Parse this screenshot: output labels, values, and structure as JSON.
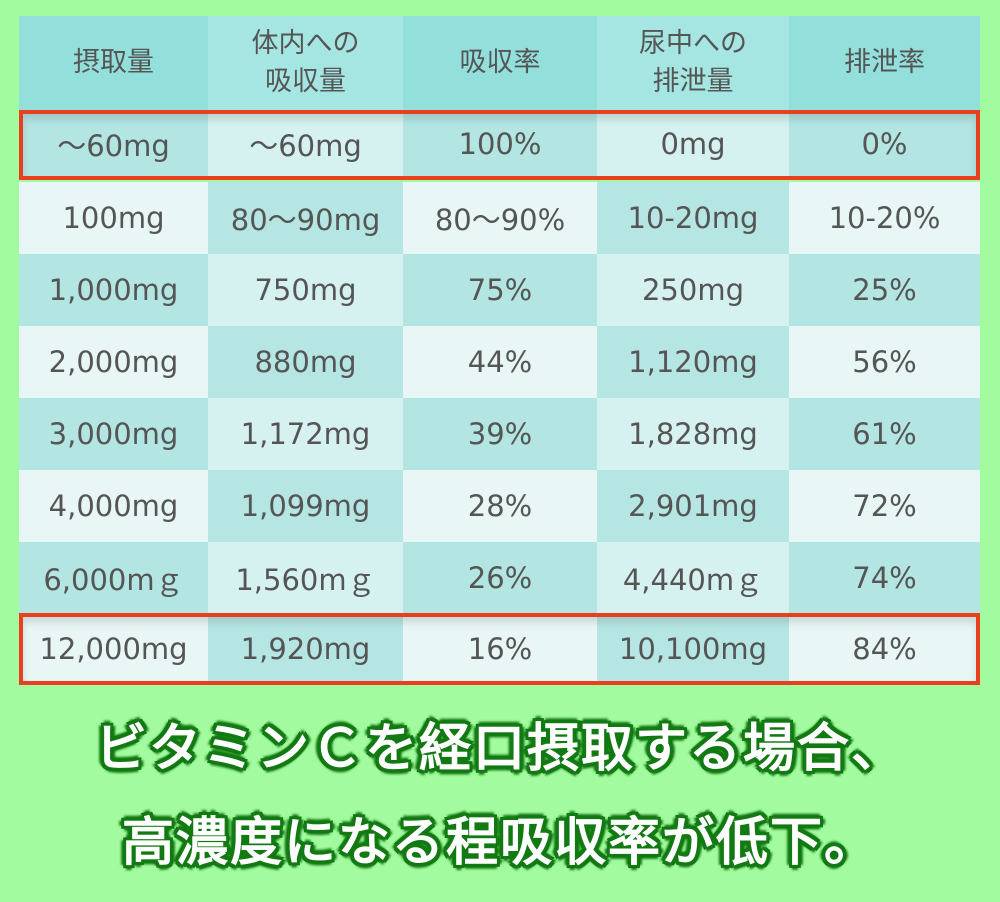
{
  "chart_data": {
    "type": "table",
    "columns": [
      "摂取量",
      "体内への\n吸収量",
      "吸収率",
      "尿中への\n排泄量",
      "排泄率"
    ],
    "rows": [
      [
        "〜60mg",
        "〜60mg",
        "100%",
        "0mg",
        "0%"
      ],
      [
        "100mg",
        "80〜90mg",
        "80〜90%",
        "10-20mg",
        "10-20%"
      ],
      [
        "1,000mg",
        "750mg",
        "75%",
        "250mg",
        "25%"
      ],
      [
        "2,000mg",
        "880mg",
        "44%",
        "1,120mg",
        "56%"
      ],
      [
        "3,000mg",
        "1,172mg",
        "39%",
        "1,828mg",
        "61%"
      ],
      [
        "4,000mg",
        "1,099mg",
        "28%",
        "2,901mg",
        "72%"
      ],
      [
        "6,000mｇ",
        "1,560mｇ",
        "26%",
        "4,440mｇ",
        "74%"
      ],
      [
        "12,000mg",
        "1,920mg",
        "16%",
        "10,100mg",
        "84%"
      ]
    ],
    "highlighted_rows": [
      0,
      7
    ]
  },
  "caption": {
    "line1": "ビタミンＣを経口摂取する場合、",
    "line2": "高濃度になる程吸収率が低下。"
  },
  "colors": {
    "background": "#a2fb9e",
    "highlight_border": "#e8401f",
    "caption_stroke": "#137a13"
  }
}
